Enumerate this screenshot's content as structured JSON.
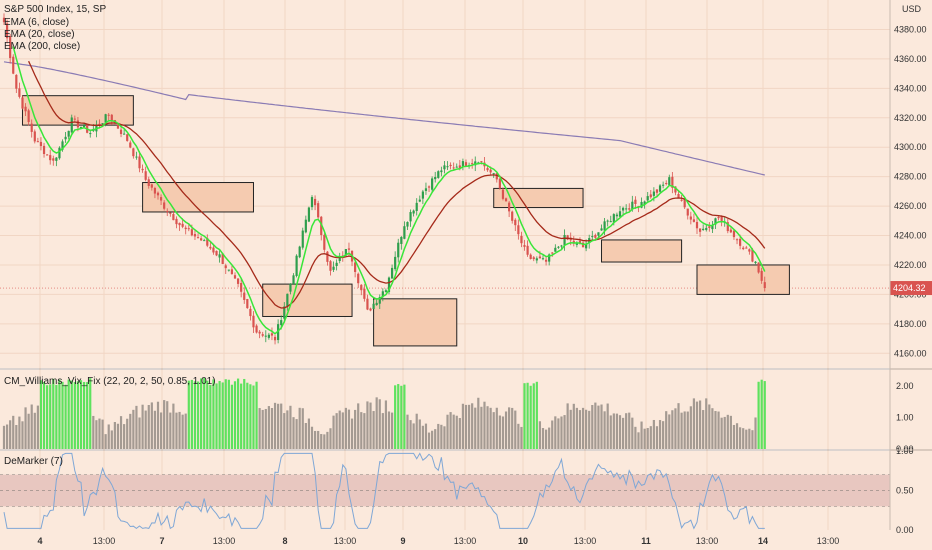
{
  "header": {
    "symbol": "S&P 500 Index, 15, SP",
    "indicators": [
      "EMA (6, close)",
      "EMA (20, close)",
      "EMA (200, close)"
    ],
    "currency": "USD"
  },
  "colors": {
    "background": "#fbe9dc",
    "up_candle": "#2e9e4c",
    "down_candle": "#d9534f",
    "ema6": "#39e639",
    "ema20": "#a52a1a",
    "ema200": "#8a7bb4",
    "zone_fill": "#f5cbb0",
    "vix_green": "#5ee25e",
    "vix_gray": "#a49a92",
    "demarker_band": "#e8c7c0",
    "demarker_line": "#7fa7d6"
  },
  "panes": {
    "vix_title": "CM_Williams_Vix_Fix (22, 20, 2, 50, 0.85, 1.01)",
    "demarker_title": "DeMarker (7)"
  },
  "price_tag": "4204.32",
  "chart_data": [
    {
      "type": "candlestick",
      "title": "S&P 500 Index, 15, SP",
      "ylim": [
        4150,
        4400
      ],
      "yticks": [
        "4380.00",
        "4360.00",
        "4340.00",
        "4320.00",
        "4300.00",
        "4280.00",
        "4260.00",
        "4240.00",
        "4220.00",
        "4200.00",
        "4180.00",
        "4160.00"
      ],
      "xticks": [
        "4",
        "13:00",
        "7",
        "13:00",
        "8",
        "13:00",
        "9",
        "13:00",
        "10",
        "13:00",
        "11",
        "13:00",
        "14",
        "13:00"
      ],
      "last_price": 4204.32,
      "close_anchors": [
        [
          0,
          4385
        ],
        [
          4,
          4340
        ],
        [
          10,
          4305
        ],
        [
          16,
          4290
        ],
        [
          22,
          4318
        ],
        [
          28,
          4310
        ],
        [
          34,
          4322
        ],
        [
          40,
          4305
        ],
        [
          46,
          4278
        ],
        [
          52,
          4260
        ],
        [
          58,
          4245
        ],
        [
          64,
          4237
        ],
        [
          70,
          4226
        ],
        [
          76,
          4205
        ],
        [
          82,
          4175
        ],
        [
          88,
          4170
        ],
        [
          94,
          4215
        ],
        [
          100,
          4268
        ],
        [
          106,
          4215
        ],
        [
          112,
          4232
        ],
        [
          118,
          4188
        ],
        [
          124,
          4205
        ],
        [
          130,
          4248
        ],
        [
          136,
          4270
        ],
        [
          142,
          4285
        ],
        [
          148,
          4288
        ],
        [
          154,
          4292
        ],
        [
          160,
          4278
        ],
        [
          165,
          4250
        ],
        [
          170,
          4225
        ],
        [
          176,
          4222
        ],
        [
          182,
          4238
        ],
        [
          188,
          4232
        ],
        [
          194,
          4245
        ],
        [
          200,
          4258
        ],
        [
          206,
          4262
        ],
        [
          212,
          4270
        ],
        [
          216,
          4278
        ],
        [
          220,
          4262
        ],
        [
          226,
          4243
        ],
        [
          232,
          4252
        ],
        [
          238,
          4238
        ],
        [
          244,
          4222
        ],
        [
          246,
          4210
        ],
        [
          247,
          4204
        ]
      ],
      "zones": [
        {
          "x0": 6,
          "x1": 42,
          "y0": 4335,
          "y1": 4315
        },
        {
          "x0": 45,
          "x1": 81,
          "y0": 4276,
          "y1": 4256
        },
        {
          "x0": 84,
          "x1": 113,
          "y0": 4207,
          "y1": 4185
        },
        {
          "x0": 120,
          "x1": 147,
          "y0": 4197,
          "y1": 4165
        },
        {
          "x0": 159,
          "x1": 188,
          "y0": 4272,
          "y1": 4259
        },
        {
          "x0": 194,
          "x1": 220,
          "y0": 4237,
          "y1": 4222
        },
        {
          "x0": 225,
          "x1": 255,
          "y0": 4220,
          "y1": 4200
        }
      ]
    },
    {
      "type": "bar",
      "title": "CM_Williams_Vix_Fix (22, 20, 2, 50, 0.85, 1.01)",
      "ylim": [
        0,
        2.5
      ],
      "yticks": [
        "2.00",
        "1.00",
        "0.00"
      ]
    },
    {
      "type": "line",
      "title": "DeMarker (7)",
      "ylim": [
        0,
        1
      ],
      "yticks": [
        "1.00",
        "0.50",
        "0.00"
      ],
      "band": [
        0.3,
        0.7
      ]
    }
  ]
}
